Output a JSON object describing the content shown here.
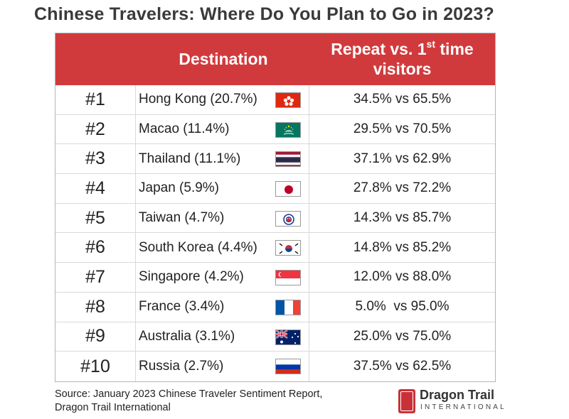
{
  "title": "Chinese Travelers: Where Do You Plan to Go in 2023?",
  "table": {
    "header_destination": "Destination",
    "header_repeat_line1": "Repeat vs. 1",
    "header_repeat_sup": "st",
    "header_repeat_tail": " time",
    "header_repeat_line2": "visitors",
    "rows": [
      {
        "rank": "#1",
        "destination": "Hong Kong (20.7%)",
        "flag_icon": "hong-kong-flag-icon",
        "repeat": "34.5% vs 65.5%"
      },
      {
        "rank": "#2",
        "destination": "Macao (11.4%)",
        "flag_icon": "macao-flag-icon",
        "repeat": "29.5% vs 70.5%"
      },
      {
        "rank": "#3",
        "destination": "Thailand (11.1%)",
        "flag_icon": "thailand-flag-icon",
        "repeat": "37.1% vs 62.9%"
      },
      {
        "rank": "#4",
        "destination": "Japan (5.9%)",
        "flag_icon": "japan-flag-icon",
        "repeat": "27.8% vs 72.2%"
      },
      {
        "rank": "#5",
        "destination": "Taiwan (4.7%)",
        "flag_icon": "taiwan-flag-icon",
        "repeat": "14.3% vs 85.7%"
      },
      {
        "rank": "#6",
        "destination": "South Korea (4.4%)",
        "flag_icon": "south-korea-flag-icon",
        "repeat": "14.8% vs 85.2%"
      },
      {
        "rank": "#7",
        "destination": "Singapore (4.2%)",
        "flag_icon": "singapore-flag-icon",
        "repeat": "12.0% vs 88.0%"
      },
      {
        "rank": "#8",
        "destination": "France (3.4%)",
        "flag_icon": "france-flag-icon",
        "repeat": "5.0%  vs 95.0%"
      },
      {
        "rank": "#9",
        "destination": "Australia (3.1%)",
        "flag_icon": "australia-flag-icon",
        "repeat": "25.0% vs 75.0%"
      },
      {
        "rank": "#10",
        "destination": "Russia (2.7%)",
        "flag_icon": "russia-flag-icon",
        "repeat": "37.5% vs 62.5%"
      }
    ]
  },
  "source": {
    "line1": "Source: January 2023 Chinese Traveler Sentiment Report,",
    "line2": "Dragon Trail International"
  },
  "logo": {
    "brand": "Dragon Trail",
    "sub": "INTERNATIONAL",
    "icon": "dragon-trail-seal-icon"
  },
  "colors": {
    "header_bg": "#d13a3d",
    "header_text": "#ffffff",
    "title_text": "#3a3a3a",
    "logo_red": "#c93137"
  }
}
